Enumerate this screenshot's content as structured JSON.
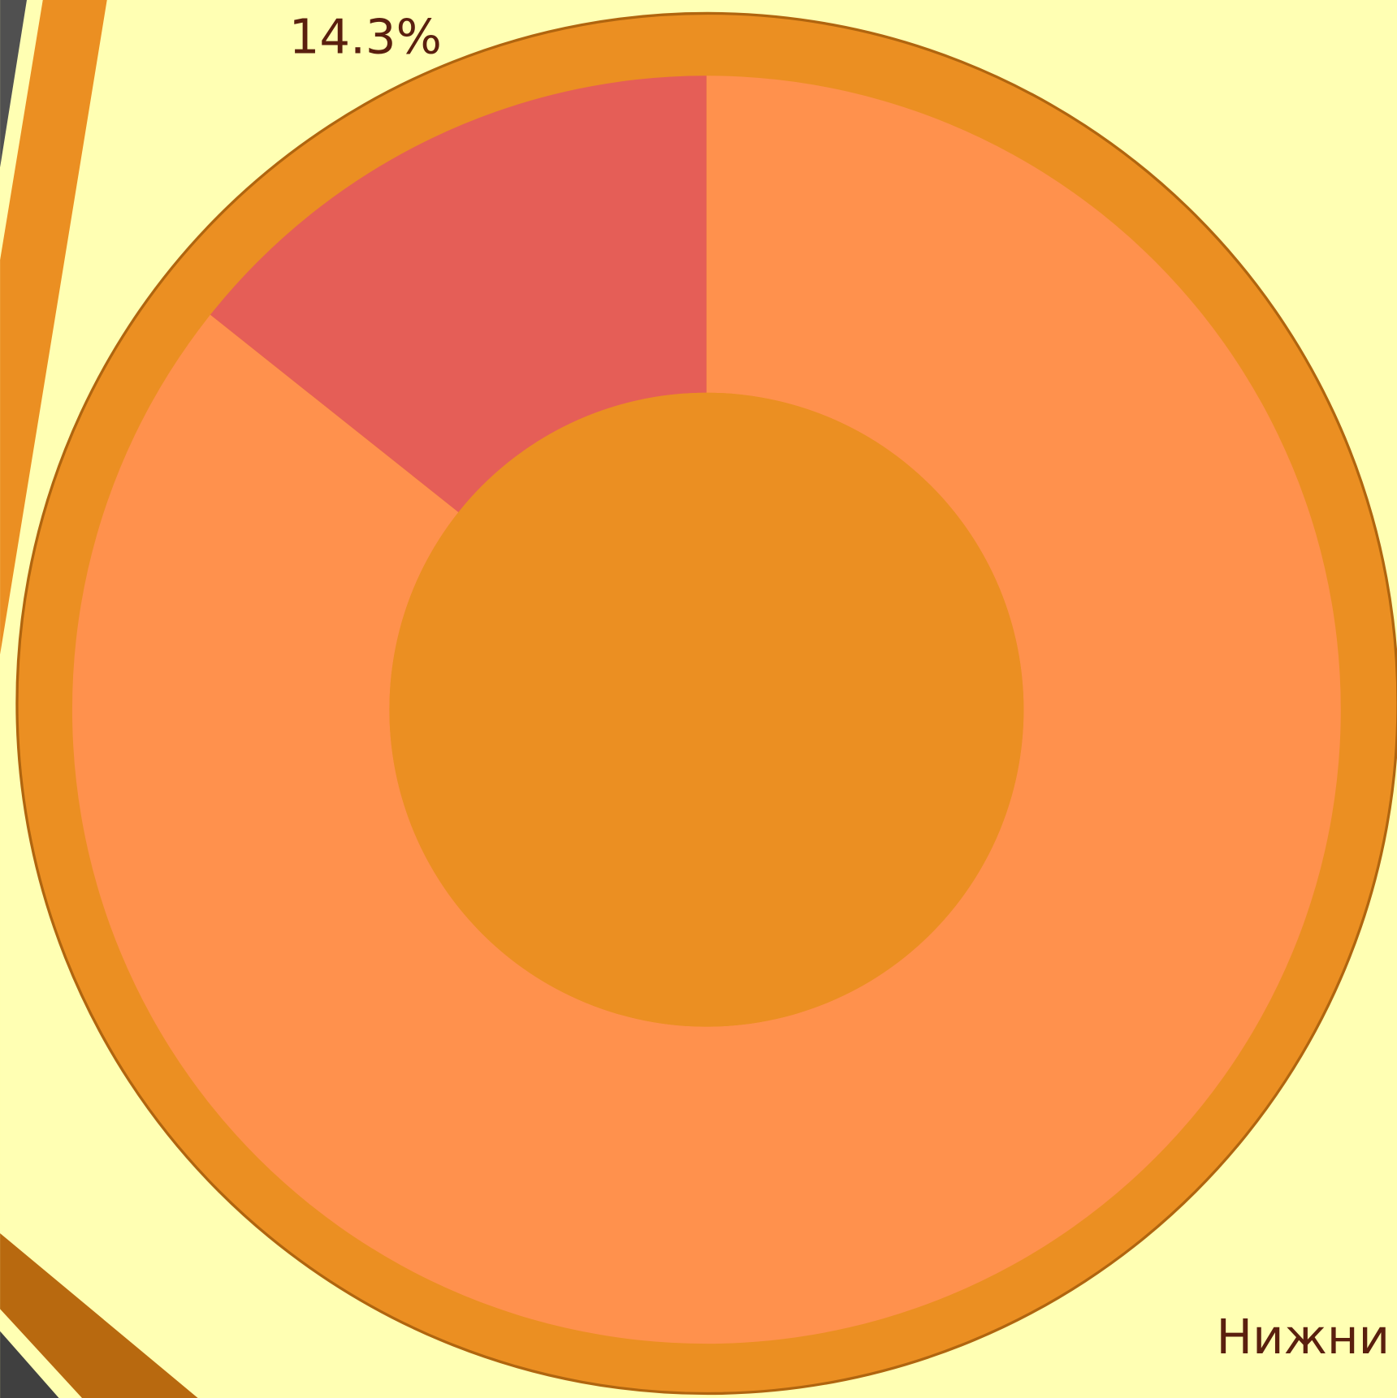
{
  "chart_data": {
    "type": "pie",
    "values": [
      14.3,
      85.7
    ],
    "value_labels": [
      "14.3%",
      null
    ],
    "colors": [
      "#e55e57",
      "#ff914d"
    ],
    "annotations": [
      "Нижни"
    ]
  }
}
